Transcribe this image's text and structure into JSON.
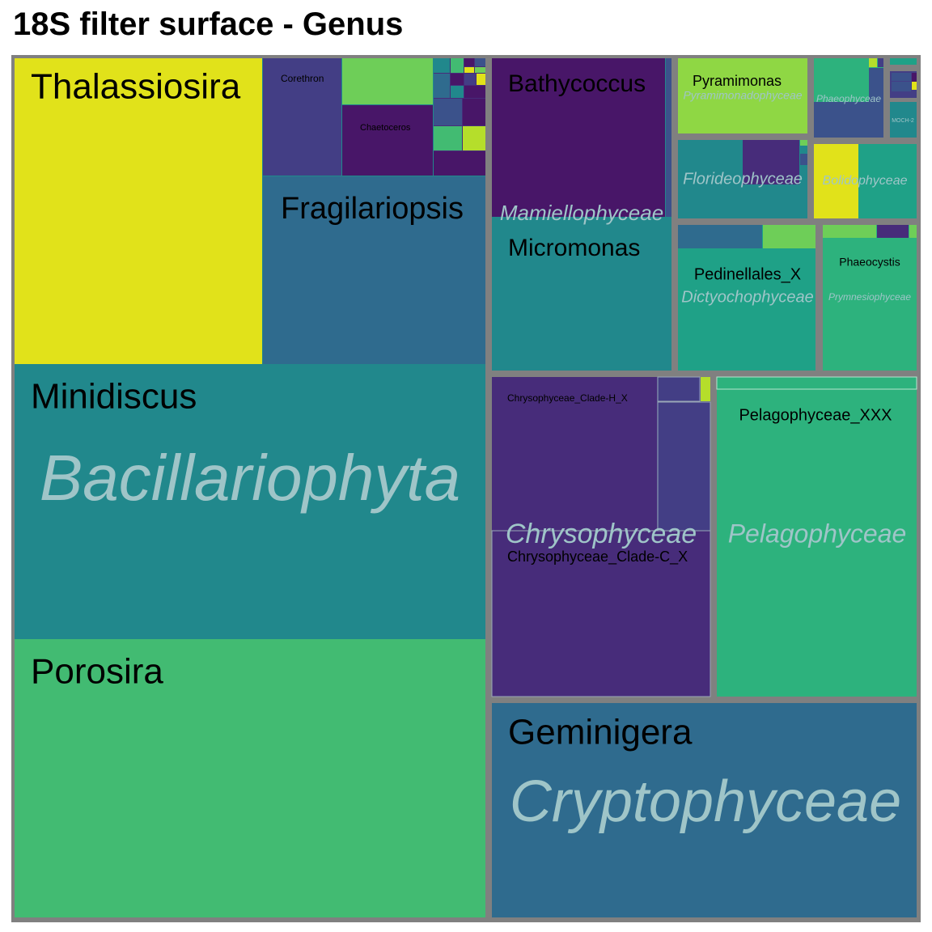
{
  "chart_data": {
    "type": "treemap",
    "title": "18S filter surface - Genus",
    "colors": {
      "border": "#808080",
      "yellow": "#e1e21a",
      "yellow_green": "#b5de2b",
      "light_green": "#6ece58",
      "green": "#42bb72",
      "green_teal": "#2db27d",
      "teal_green": "#1fa187",
      "teal": "#21888c",
      "blue_teal": "#2b748e",
      "steel_blue": "#2f6b8e",
      "blue": "#3b528b",
      "indigo": "#433e85",
      "purple": "#472c7a",
      "dark_purple": "#481668",
      "class_label": "#9fc5c8"
    },
    "groups": [
      {
        "name": "Bacillariophyta",
        "genera": [
          {
            "name": "Thalassiosira",
            "color": "#e1e21a"
          },
          {
            "name": "Corethron",
            "color": "#433e85"
          },
          {
            "name": "Chaetoceros",
            "color": "#481668"
          },
          {
            "name": "Fragilariopsis",
            "color": "#2f6b8e"
          },
          {
            "name": "Minidiscus",
            "color": "#21888c"
          },
          {
            "name": "Porosira",
            "color": "#42bb72"
          }
        ]
      },
      {
        "name": "Mamiellophyceae",
        "genera": [
          {
            "name": "Bathycoccus",
            "color": "#481668"
          },
          {
            "name": "Micromonas",
            "color": "#21888c"
          }
        ]
      },
      {
        "name": "Pyramimonadophyceae",
        "genera": [
          {
            "name": "Pyramimonas",
            "color": "#8fd744"
          }
        ]
      },
      {
        "name": "Phaeophyceae",
        "genera": []
      },
      {
        "name": "Florideophyceae",
        "genera": []
      },
      {
        "name": "Bolidophyceae",
        "genera": []
      },
      {
        "name": "MOCH-2",
        "genera": []
      },
      {
        "name": "Dictyochophyceae",
        "genera": [
          {
            "name": "Pedinellales_X",
            "color": "#1fa187"
          }
        ]
      },
      {
        "name": "Prymnesiophyceae",
        "genera": [
          {
            "name": "Phaeocystis",
            "color": "#2db27d"
          }
        ]
      },
      {
        "name": "Chrysophyceae",
        "genera": [
          {
            "name": "Chrysophyceae_Clade-H_X",
            "color": "#472c7a"
          },
          {
            "name": "Chrysophyceae_Clade-C_X",
            "color": "#472c7a"
          }
        ]
      },
      {
        "name": "Pelagophyceae",
        "genera": [
          {
            "name": "Pelagophyceae_XXX",
            "color": "#2db27d"
          }
        ]
      },
      {
        "name": "Cryptophyceae",
        "genera": [
          {
            "name": "Geminigera",
            "color": "#2f6b8e"
          }
        ]
      }
    ]
  }
}
